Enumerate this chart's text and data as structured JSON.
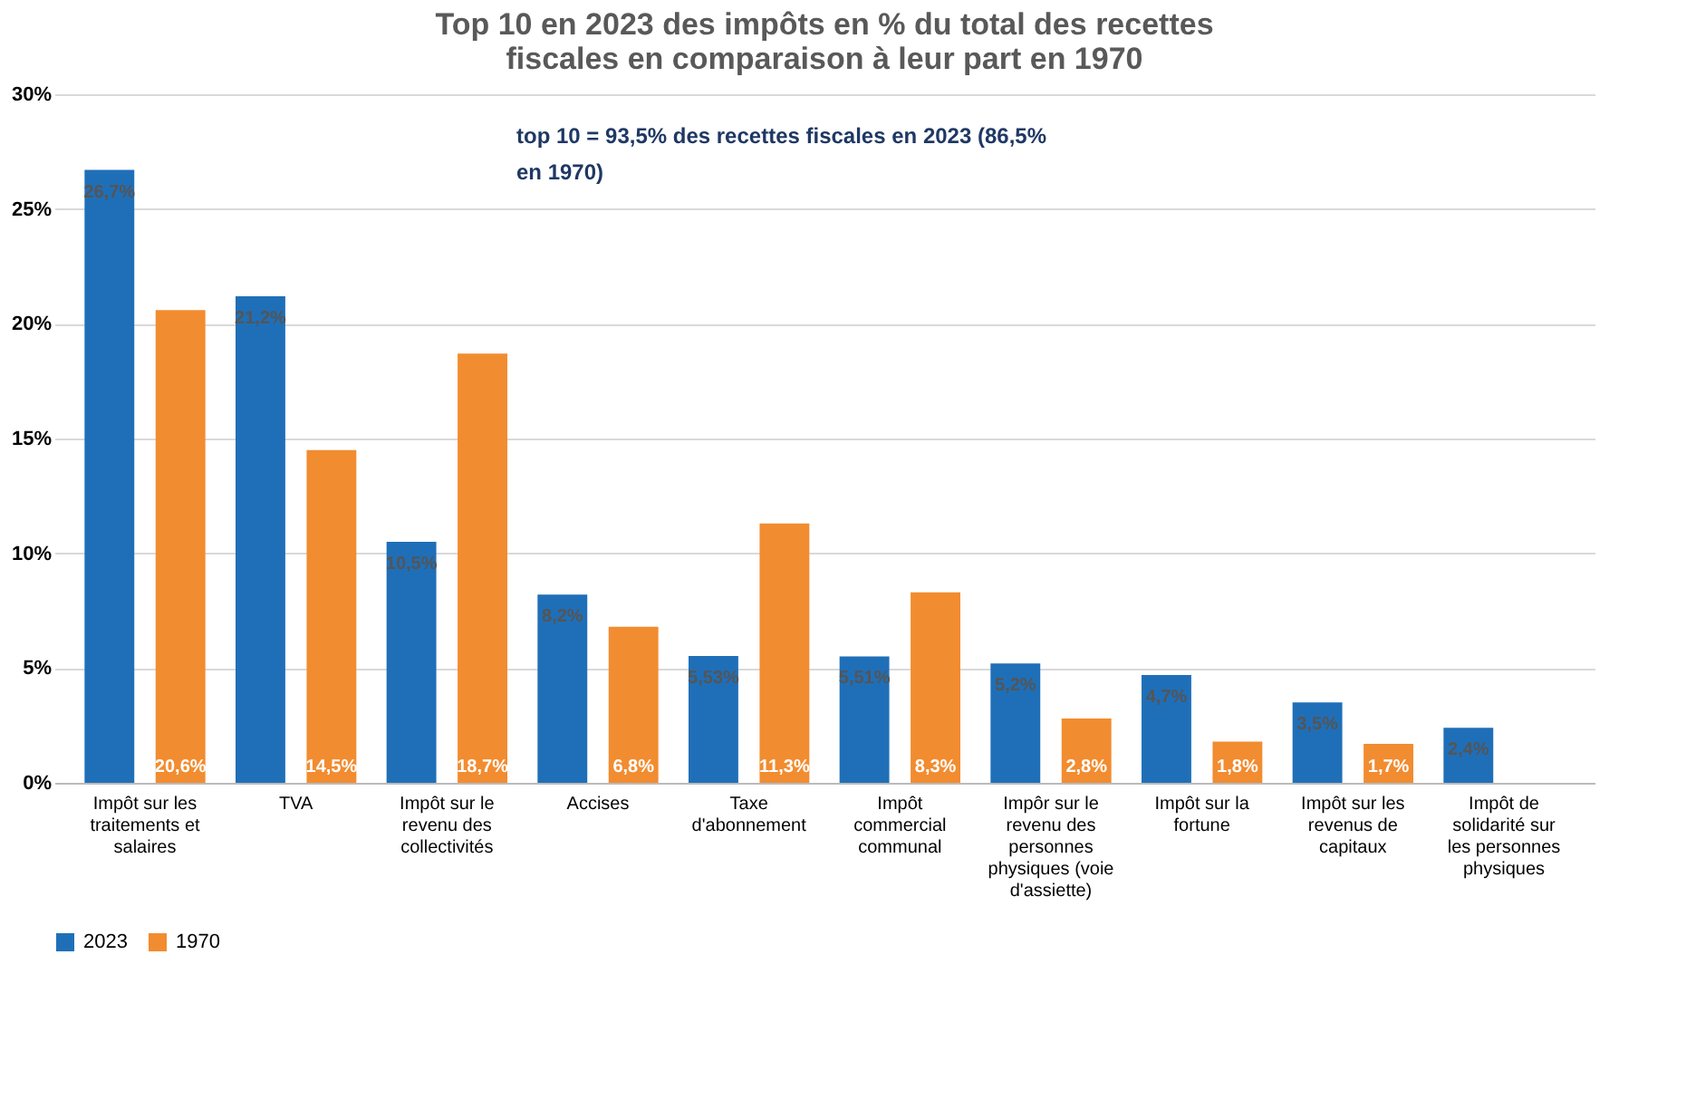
{
  "chart_data": {
    "type": "bar",
    "title": "Top 10 en 2023 des impôts en % du total des recettes fiscales en comparaison à leur part en 1970",
    "categories": [
      "Impôt sur les traitements et salaires",
      "TVA",
      "Impôt sur le revenu des collectivités",
      "Accises",
      "Taxe d'abonnement",
      "Impôt commercial communal",
      "Impôr sur le revenu des personnes physiques (voie d'assiette)",
      "Impôt sur la fortune",
      "Impôt sur les revenus de capitaux",
      "Impôt de solidarité sur les personnes physiques"
    ],
    "series": [
      {
        "name": "2023",
        "color": "#1f6fb8",
        "values": [
          26.7,
          21.2,
          10.5,
          8.2,
          5.53,
          5.51,
          5.2,
          4.7,
          3.5,
          2.4
        ],
        "value_labels": [
          "26,7%",
          "21,2%",
          "10,5%",
          "8,2%",
          "5,53%",
          "5,51%",
          "5,2%",
          "4,7%",
          "3,5%",
          "2,4%"
        ]
      },
      {
        "name": "1970",
        "color": "#f28c30",
        "values": [
          20.6,
          14.5,
          18.7,
          6.8,
          11.3,
          8.3,
          2.8,
          1.8,
          1.7,
          null
        ],
        "value_labels": [
          "20,6%",
          "14,5%",
          "18,7%",
          "6,8%",
          "11,3%",
          "8,3%",
          "2,8%",
          "1,8%",
          "1,7%",
          null
        ]
      }
    ],
    "ylim": [
      0,
      30
    ],
    "yticks": [
      {
        "value": 0,
        "label": "0%"
      },
      {
        "value": 5,
        "label": "5%"
      },
      {
        "value": 10,
        "label": "10%"
      },
      {
        "value": 15,
        "label": "15%"
      },
      {
        "value": 20,
        "label": "20%"
      },
      {
        "value": 25,
        "label": "25%"
      },
      {
        "value": 30,
        "label": "30%"
      }
    ],
    "grid": "y",
    "legend": "bottom",
    "annotations": [
      "top 10 = 93,5% des recettes fiscales en 2023 (86,5% en 1970)"
    ]
  }
}
